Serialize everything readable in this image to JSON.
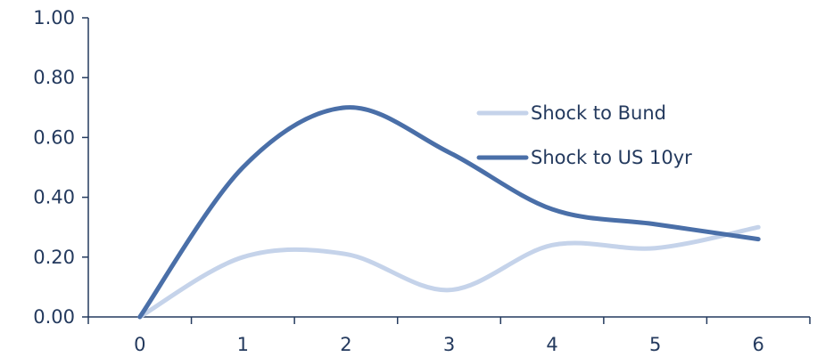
{
  "chart_data": {
    "type": "line",
    "x": [
      0,
      1,
      2,
      3,
      4,
      5,
      6
    ],
    "x_tick_labels": [
      "0",
      "1",
      "2",
      "3",
      "4",
      "5",
      "6"
    ],
    "y_tick_labels": [
      "0.00",
      "0.20",
      "0.40",
      "0.60",
      "0.80",
      "1.00"
    ],
    "ylim": [
      0,
      1
    ],
    "xlim": [
      -0.5,
      6.5
    ],
    "grid": false,
    "legend_position": "right",
    "series": [
      {
        "name": "Shock to Bund",
        "color": "#c5d3ea",
        "values": [
          0.0,
          0.2,
          0.21,
          0.09,
          0.24,
          0.23,
          0.3
        ]
      },
      {
        "name": "Shock to US 10yr",
        "color": "#4a6fa8",
        "values": [
          0.0,
          0.5,
          0.7,
          0.55,
          0.36,
          0.31,
          0.26
        ]
      }
    ],
    "axis_color": "#243a5e"
  }
}
